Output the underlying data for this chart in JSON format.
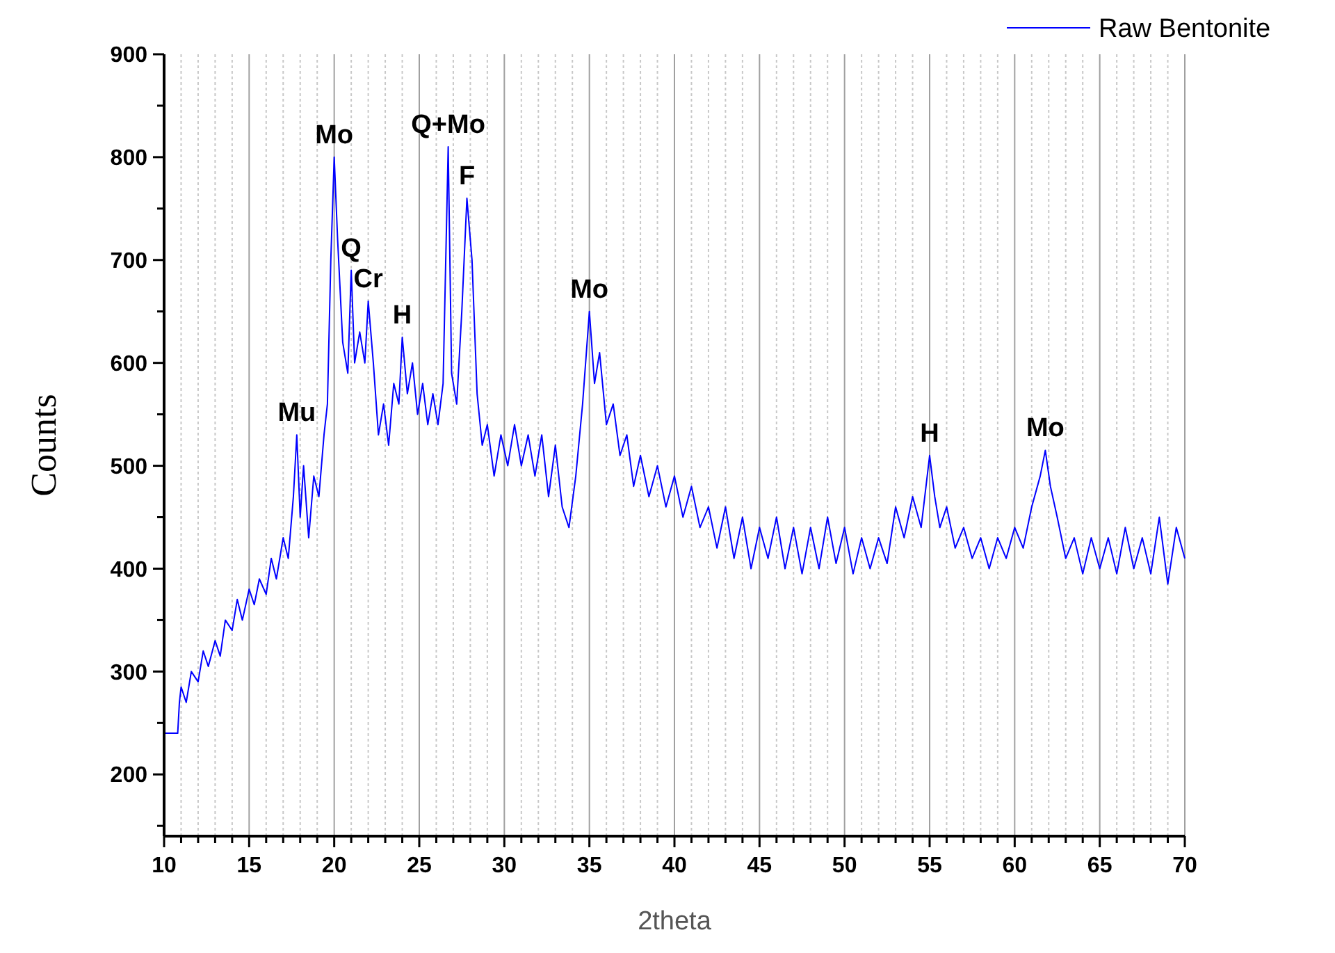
{
  "chart_data": {
    "type": "line",
    "xlabel": "2theta",
    "ylabel": "Counts",
    "legend": "top right",
    "grid": "x",
    "line_style": "solid",
    "xlim": [
      10,
      70
    ],
    "ylim": [
      140,
      900
    ],
    "xticks": [
      10,
      {
        "value": 11,
        "label": null
      },
      {
        "value": 12,
        "label": null
      },
      {
        "value": 13,
        "label": null
      },
      {
        "value": 14,
        "label": null
      },
      15,
      {
        "value": 16,
        "label": null
      },
      {
        "value": 17,
        "label": null
      },
      {
        "value": 18,
        "label": null
      },
      {
        "value": 19,
        "label": null
      },
      20,
      {
        "value": 21,
        "label": null
      },
      {
        "value": 22,
        "label": null
      },
      {
        "value": 23,
        "label": null
      },
      {
        "value": 24,
        "label": null
      },
      25,
      {
        "value": 26,
        "label": null
      },
      {
        "value": 27,
        "label": null
      },
      {
        "value": 28,
        "label": null
      },
      {
        "value": 29,
        "label": null
      },
      30,
      {
        "value": 31,
        "label": null
      },
      {
        "value": 32,
        "label": null
      },
      {
        "value": 33,
        "label": null
      },
      {
        "value": 34,
        "label": null
      },
      35,
      {
        "value": 36,
        "label": null
      },
      {
        "value": 37,
        "label": null
      },
      {
        "value": 38,
        "label": null
      },
      {
        "value": 39,
        "label": null
      },
      40,
      {
        "value": 41,
        "label": null
      },
      {
        "value": 42,
        "label": null
      },
      {
        "value": 43,
        "label": null
      },
      {
        "value": 44,
        "label": null
      },
      45,
      {
        "value": 46,
        "label": null
      },
      {
        "value": 47,
        "label": null
      },
      {
        "value": 48,
        "label": null
      },
      {
        "value": 49,
        "label": null
      },
      50,
      {
        "value": 51,
        "label": null
      },
      {
        "value": 52,
        "label": null
      },
      {
        "value": 53,
        "label": null
      },
      {
        "value": 54,
        "label": null
      },
      55,
      {
        "value": 56,
        "label": null
      },
      {
        "value": 57,
        "label": null
      },
      {
        "value": 58,
        "label": null
      },
      {
        "value": 59,
        "label": null
      },
      60,
      {
        "value": 61,
        "label": null
      },
      {
        "value": 62,
        "label": null
      },
      {
        "value": 63,
        "label": null
      },
      {
        "value": 64,
        "label": null
      },
      65,
      {
        "value": 66,
        "label": null
      },
      {
        "value": 67,
        "label": null
      },
      {
        "value": 68,
        "label": null
      },
      {
        "value": 69,
        "label": null
      },
      70
    ],
    "yticks": [
      {
        "value": 150,
        "label": null
      },
      200,
      {
        "value": 250,
        "label": null
      },
      300,
      {
        "value": 350,
        "label": null
      },
      400,
      {
        "value": 450,
        "label": null
      },
      500,
      {
        "value": 550,
        "label": null
      },
      600,
      {
        "value": 650,
        "label": null
      },
      700,
      {
        "value": 750,
        "label": null
      },
      800,
      {
        "value": 850,
        "label": null
      },
      900
    ],
    "annotations": [
      {
        "text": "Mu",
        "x": 17.8,
        "y": 530
      },
      {
        "text": "Mo",
        "x": 20,
        "y": 800
      },
      {
        "text": "Q",
        "x": 21,
        "y": 690
      },
      {
        "text": "Cr",
        "x": 22,
        "y": 660
      },
      {
        "text": "H",
        "x": 24,
        "y": 625
      },
      {
        "text": "Q+Mo",
        "x": 26.7,
        "y": 810
      },
      {
        "text": "F",
        "x": 27.8,
        "y": 760
      },
      {
        "text": "Mo",
        "x": 35,
        "y": 650
      },
      {
        "text": "H",
        "x": 55,
        "y": 510
      },
      {
        "text": "Mo",
        "x": 61.8,
        "y": 515
      }
    ],
    "series": [
      {
        "name": "Raw Bentonite",
        "color": "#0000ff",
        "x": [
          10,
          10.8,
          10.9,
          11,
          11.3,
          11.6,
          12,
          12.3,
          12.6,
          13,
          13.3,
          13.6,
          14,
          14.3,
          14.6,
          15,
          15.3,
          15.6,
          16,
          16.3,
          16.6,
          17,
          17.3,
          17.6,
          17.8,
          18,
          18.2,
          18.5,
          18.8,
          19.1,
          19.4,
          19.6,
          19.8,
          20,
          20.2,
          20.5,
          20.8,
          21,
          21.2,
          21.5,
          21.8,
          22,
          22.3,
          22.6,
          22.9,
          23.2,
          23.5,
          23.8,
          24,
          24.3,
          24.6,
          24.9,
          25.2,
          25.5,
          25.8,
          26.1,
          26.4,
          26.7,
          26.9,
          27.2,
          27.5,
          27.8,
          28.1,
          28.4,
          28.7,
          29,
          29.4,
          29.8,
          30.2,
          30.6,
          31,
          31.4,
          31.8,
          32.2,
          32.6,
          33,
          33.4,
          33.8,
          34.2,
          34.6,
          35,
          35.3,
          35.6,
          36,
          36.4,
          36.8,
          37.2,
          37.6,
          38,
          38.5,
          39,
          39.5,
          40,
          40.5,
          41,
          41.5,
          42,
          42.5,
          43,
          43.5,
          44,
          44.5,
          45,
          45.5,
          46,
          46.5,
          47,
          47.5,
          48,
          48.5,
          49,
          49.5,
          50,
          50.5,
          51,
          51.5,
          52,
          52.5,
          53,
          53.5,
          54,
          54.5,
          55,
          55.3,
          55.6,
          56,
          56.5,
          57,
          57.5,
          58,
          58.5,
          59,
          59.5,
          60,
          60.5,
          61,
          61.5,
          61.8,
          62.1,
          62.5,
          63,
          63.5,
          64,
          64.5,
          65,
          65.5,
          66,
          66.5,
          67,
          67.5,
          68,
          68.5,
          69,
          69.5,
          70
        ],
        "values": [
          240,
          240,
          270,
          285,
          270,
          300,
          290,
          320,
          305,
          330,
          315,
          350,
          340,
          370,
          350,
          380,
          365,
          390,
          375,
          410,
          390,
          430,
          410,
          470,
          530,
          450,
          500,
          430,
          490,
          470,
          530,
          560,
          700,
          800,
          720,
          620,
          590,
          690,
          600,
          630,
          600,
          660,
          600,
          530,
          560,
          520,
          580,
          560,
          625,
          570,
          600,
          550,
          580,
          540,
          570,
          540,
          580,
          810,
          590,
          560,
          650,
          760,
          700,
          570,
          520,
          540,
          490,
          530,
          500,
          540,
          500,
          530,
          490,
          530,
          470,
          520,
          460,
          440,
          490,
          560,
          650,
          580,
          610,
          540,
          560,
          510,
          530,
          480,
          510,
          470,
          500,
          460,
          490,
          450,
          480,
          440,
          460,
          420,
          460,
          410,
          450,
          400,
          440,
          410,
          450,
          400,
          440,
          395,
          440,
          400,
          450,
          405,
          440,
          395,
          430,
          400,
          430,
          405,
          460,
          430,
          470,
          440,
          510,
          470,
          440,
          460,
          420,
          440,
          410,
          430,
          400,
          430,
          410,
          440,
          420,
          460,
          490,
          515,
          480,
          450,
          410,
          430,
          395,
          430,
          400,
          430,
          395,
          440,
          400,
          430,
          395,
          450,
          385,
          440,
          410
        ]
      }
    ]
  }
}
